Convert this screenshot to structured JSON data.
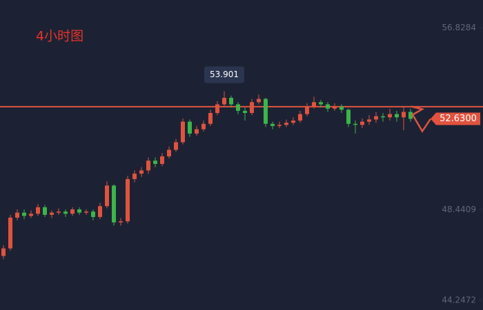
{
  "chart_data": {
    "type": "candlestick",
    "title": "4小时图",
    "ylim": [
      43.807,
      58.115
    ],
    "yticks": [
      44.2472,
      48.4409,
      56.8284
    ],
    "up_color": "#e0533f",
    "down_color": "#3bb54a",
    "reference_line": 53.19,
    "annotation": 53.901,
    "last_price": {
      "value": 52.63,
      "label": "52.6300"
    },
    "open": [
      46.3,
      46.65,
      48.07,
      48.3,
      48.15,
      48.25,
      48.55,
      48.2,
      48.3,
      48.35,
      48.25,
      48.45,
      48.3,
      48.35,
      48.1,
      48.6,
      49.55,
      47.85,
      47.9,
      49.85,
      50.1,
      50.25,
      50.7,
      50.55,
      50.9,
      51.2,
      51.55,
      52.5,
      51.95,
      52.15,
      52.4,
      52.9,
      53.3,
      53.6,
      53.3,
      53.0,
      52.9,
      53.4,
      53.55,
      52.4,
      52.3,
      52.35,
      52.45,
      52.55,
      52.85,
      53.2,
      53.4,
      53.3,
      53.1,
      53.2,
      53.05,
      52.4,
      52.35,
      52.5,
      52.6,
      52.75,
      52.7,
      52.85,
      52.7,
      52.95
    ],
    "high": [
      46.8,
      48.2,
      48.45,
      48.45,
      48.4,
      48.7,
      48.65,
      48.4,
      48.5,
      48.45,
      48.55,
      48.55,
      48.45,
      48.45,
      48.75,
      49.75,
      49.6,
      48.05,
      50.0,
      50.25,
      50.4,
      50.85,
      50.85,
      51.05,
      51.35,
      51.7,
      52.65,
      52.6,
      52.3,
      52.55,
      53.05,
      53.45,
      53.901,
      53.7,
      53.4,
      53.15,
      53.55,
      53.75,
      53.6,
      52.5,
      52.5,
      52.6,
      52.7,
      53.0,
      53.35,
      53.65,
      53.5,
      53.4,
      53.35,
      53.3,
      53.1,
      52.55,
      52.65,
      52.8,
      52.95,
      52.9,
      53.1,
      53.0,
      53.2,
      53.1
    ],
    "low": [
      46.15,
      46.55,
      47.95,
      48.0,
      48.05,
      48.15,
      48.1,
      48.05,
      48.2,
      48.1,
      48.15,
      48.2,
      48.2,
      47.95,
      48.0,
      48.5,
      47.7,
      47.7,
      47.8,
      49.7,
      49.95,
      50.1,
      50.4,
      50.45,
      50.8,
      51.1,
      51.45,
      51.8,
      51.85,
      52.05,
      52.3,
      52.8,
      53.2,
      53.15,
      52.85,
      52.55,
      52.8,
      53.3,
      52.25,
      52.15,
      52.2,
      52.25,
      52.35,
      52.45,
      52.75,
      53.1,
      53.15,
      52.95,
      53.0,
      52.9,
      52.25,
      51.95,
      52.2,
      52.35,
      52.45,
      52.5,
      52.55,
      52.5,
      52.1,
      52.5
    ],
    "close": [
      46.65,
      48.07,
      48.3,
      48.15,
      48.25,
      48.55,
      48.2,
      48.3,
      48.35,
      48.25,
      48.45,
      48.3,
      48.35,
      48.1,
      48.6,
      49.55,
      47.85,
      47.9,
      49.85,
      50.1,
      50.25,
      50.7,
      50.55,
      50.9,
      51.2,
      51.55,
      52.5,
      51.95,
      52.15,
      52.4,
      52.9,
      53.3,
      53.6,
      53.3,
      53.0,
      52.9,
      53.4,
      53.55,
      52.4,
      52.3,
      52.35,
      52.45,
      52.55,
      52.85,
      53.2,
      53.4,
      53.3,
      53.1,
      53.2,
      53.05,
      52.4,
      52.35,
      52.5,
      52.6,
      52.75,
      52.7,
      52.85,
      52.7,
      52.95,
      52.63
    ]
  }
}
